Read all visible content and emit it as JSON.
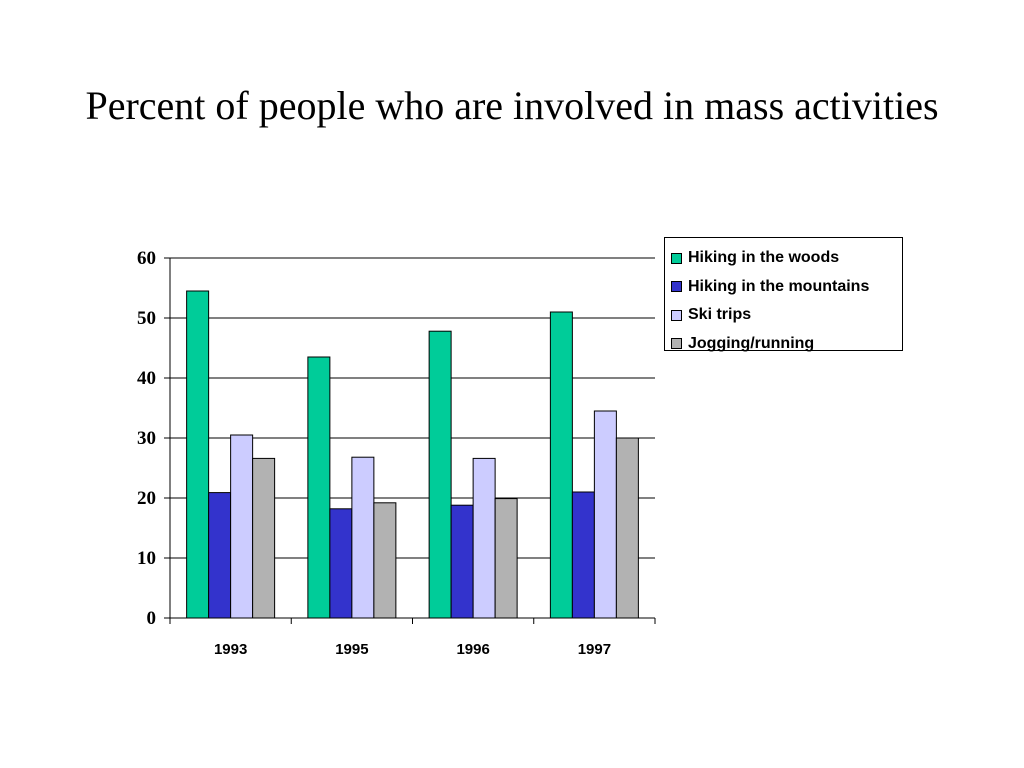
{
  "chart_data": {
    "type": "bar",
    "title": "Percent of people who are involved in mass activities",
    "xlabel": "",
    "ylabel": "",
    "categories": [
      "1993",
      "1995",
      "1996",
      "1997"
    ],
    "series": [
      {
        "name": "Hiking in the woods",
        "color": "#00CC99",
        "values": [
          54.5,
          43.5,
          47.8,
          51
        ]
      },
      {
        "name": "Hiking in the mountains",
        "color": "#3333CC",
        "values": [
          20.9,
          18.2,
          18.8,
          21
        ]
      },
      {
        "name": "Ski trips",
        "color": "#CCCCFF",
        "values": [
          30.5,
          26.8,
          26.6,
          34.5
        ]
      },
      {
        "name": "Jogging/running",
        "color": "#B2B2B2",
        "values": [
          26.6,
          19.2,
          19.9,
          30
        ]
      }
    ],
    "ylim": [
      0,
      60
    ],
    "yticks": [
      0,
      10,
      20,
      30,
      40,
      50,
      60
    ],
    "grid": true,
    "legend_position": "top-right"
  }
}
